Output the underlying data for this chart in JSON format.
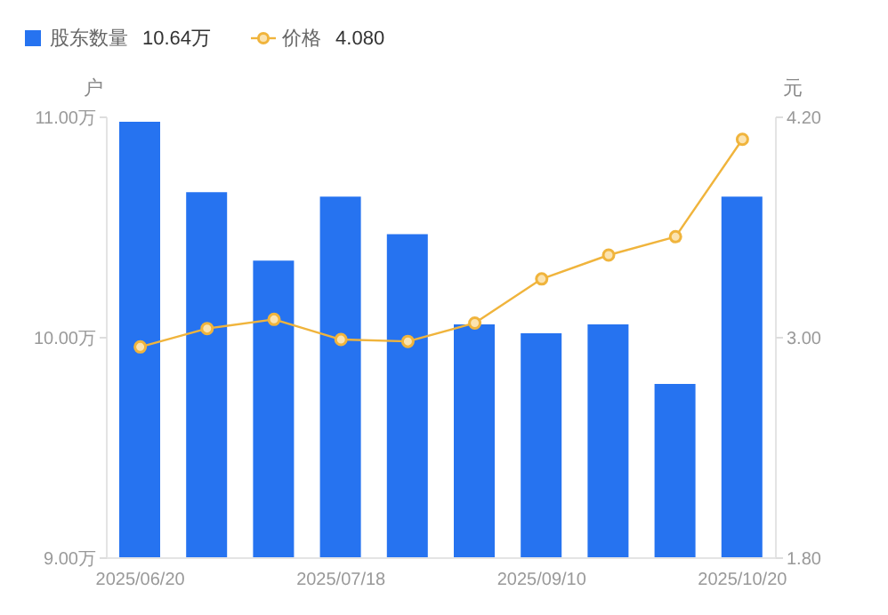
{
  "chart_data": {
    "type": "bar",
    "categories": [
      "2025/06/20",
      null,
      null,
      "2025/07/18",
      null,
      null,
      "2025/09/10",
      null,
      null,
      "2025/10/20"
    ],
    "series": [
      {
        "name": "股东数量",
        "color": "#2673f0",
        "values": [
          10.98,
          10.66,
          10.35,
          10.64,
          10.47,
          10.06,
          10.02,
          10.06,
          9.79,
          10.64
        ]
      },
      {
        "name": "价格",
        "type": "line",
        "axis": "y2",
        "color": "#f0b43c",
        "values": [
          2.95,
          3.05,
          3.1,
          2.99,
          2.98,
          3.08,
          3.32,
          3.45,
          3.55,
          4.08
        ]
      }
    ],
    "annotations": [
      "10.64万",
      "4.080"
    ],
    "ylabel": "户",
    "y2label": "元",
    "ylim": [
      9,
      11
    ],
    "yticks": [
      {
        "value": 9,
        "label": "9.00万"
      },
      {
        "value": 10,
        "label": "10.00万"
      },
      {
        "value": 11,
        "label": "11.00万"
      }
    ],
    "y2lim": [
      1.8,
      4.2
    ],
    "y2ticks": [
      {
        "value": 1.8,
        "label": "1.80"
      },
      {
        "value": 3,
        "label": "3.00"
      },
      {
        "value": 4.2,
        "label": "4.20"
      }
    ],
    "grid": false,
    "legend": "top left",
    "marker": "circle",
    "line_style": "solid"
  }
}
